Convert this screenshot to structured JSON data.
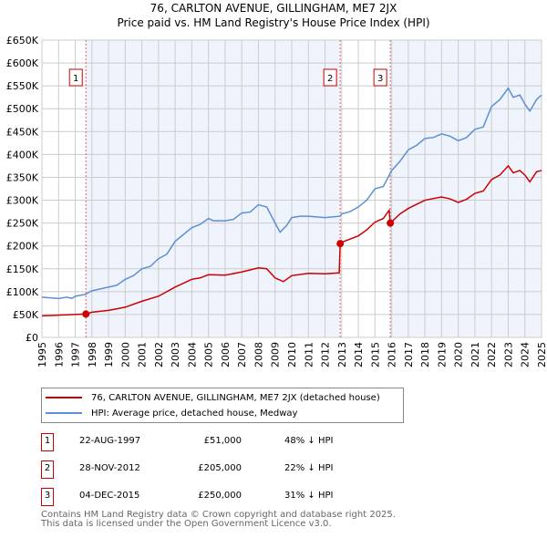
{
  "title": "76, CARLTON AVENUE, GILLINGHAM, ME7 2JX",
  "subtitle": "Price paid vs. HM Land Registry's House Price Index (HPI)",
  "colors": {
    "price": "#cc0000",
    "hpi": "#5b8fd6",
    "shade": "#eef3fc"
  },
  "legend": {
    "price": "76, CARLTON AVENUE, GILLINGHAM, ME7 2JX (detached house)",
    "hpi": "HPI: Average price, detached house, Medway"
  },
  "sales": [
    {
      "num": "1",
      "date": "22-AUG-1997",
      "price": "£51,000",
      "hpi": "48% ↓ HPI"
    },
    {
      "num": "2",
      "date": "28-NOV-2012",
      "price": "£205,000",
      "hpi": "22% ↓ HPI"
    },
    {
      "num": "3",
      "date": "04-DEC-2015",
      "price": "£250,000",
      "hpi": "31% ↓ HPI"
    }
  ],
  "footer": [
    "Contains HM Land Registry data © Crown copyright and database right 2025.",
    "This data is licensed under the Open Government Licence v3.0."
  ],
  "chart_data": {
    "type": "line",
    "xlim": [
      1995,
      2025
    ],
    "ylim": [
      0,
      650000
    ],
    "yticks": [
      "£0",
      "£50K",
      "£100K",
      "£150K",
      "£200K",
      "£250K",
      "£300K",
      "£350K",
      "£400K",
      "£450K",
      "£500K",
      "£550K",
      "£600K",
      "£650K"
    ],
    "xticks": [
      "1995",
      "1996",
      "1997",
      "1998",
      "1999",
      "2000",
      "2001",
      "2002",
      "2003",
      "2004",
      "2005",
      "2006",
      "2007",
      "2008",
      "2009",
      "2010",
      "2011",
      "2012",
      "2013",
      "2014",
      "2015",
      "2016",
      "2017",
      "2018",
      "2019",
      "2020",
      "2021",
      "2022",
      "2023",
      "2024",
      "2025"
    ],
    "sale_points": [
      {
        "label": "1",
        "x": 1997.64,
        "y": 51000
      },
      {
        "label": "2",
        "x": 2012.91,
        "y": 205000
      },
      {
        "label": "3",
        "x": 2015.92,
        "y": 250000
      }
    ],
    "series": [
      {
        "name": "HPI",
        "x": [
          1995,
          1996,
          1996.5,
          1996.8,
          1997,
          1997.6,
          1998,
          1999,
          1999.5,
          2000,
          2000.5,
          2001,
          2001.5,
          2002,
          2002.5,
          2003,
          2003.5,
          2004,
          2004.5,
          2005,
          2005.3,
          2006,
          2006.5,
          2007,
          2007.5,
          2008,
          2008.5,
          2009,
          2009.3,
          2009.7,
          2010,
          2010.5,
          2011,
          2012,
          2012.9,
          2013,
          2013.5,
          2014,
          2014.5,
          2015,
          2015.5,
          2016,
          2016.5,
          2017,
          2017.5,
          2018,
          2018.5,
          2019,
          2019.5,
          2020,
          2020.5,
          2021,
          2021.5,
          2022,
          2022.5,
          2023,
          2023.3,
          2023.7,
          2024,
          2024.3,
          2024.7,
          2025
        ],
        "y": [
          88,
          85,
          88,
          85,
          90,
          94,
          102,
          110,
          114,
          127,
          135,
          150,
          155,
          172,
          182,
          210,
          225,
          240,
          247,
          260,
          255,
          255,
          258,
          272,
          274,
          290,
          285,
          250,
          230,
          245,
          262,
          265,
          265,
          262,
          265,
          270,
          275,
          285,
          300,
          325,
          330,
          365,
          385,
          410,
          420,
          435,
          437,
          445,
          440,
          430,
          437,
          455,
          460,
          505,
          520,
          545,
          525,
          530,
          510,
          495,
          520,
          530
        ]
      },
      {
        "name": "Price paid",
        "x": [
          1995,
          1997.64,
          1998,
          1999,
          2000,
          2001,
          2002,
          2003,
          2004,
          2004.5,
          2005,
          2006,
          2007,
          2008,
          2008.5,
          2009,
          2009.5,
          2010,
          2011,
          2012,
          2012.85,
          2012.91,
          2013,
          2014,
          2014.5,
          2015,
          2015.5,
          2015.85,
          2015.92,
          2016.5,
          2017,
          2018,
          2019,
          2019.5,
          2020,
          2020.5,
          2021,
          2021.5,
          2022,
          2022.5,
          2023,
          2023.3,
          2023.7,
          2024,
          2024.3,
          2024.7,
          2025
        ],
        "y": [
          47,
          51,
          55,
          59,
          66,
          79,
          90,
          110,
          127,
          130,
          137,
          136,
          143,
          152,
          150,
          130,
          122,
          135,
          140,
          139,
          141,
          205,
          208,
          222,
          235,
          252,
          260,
          278,
          250,
          270,
          282,
          300,
          307,
          303,
          295,
          302,
          315,
          320,
          345,
          355,
          375,
          360,
          365,
          355,
          340,
          362,
          365
        ]
      }
    ]
  }
}
